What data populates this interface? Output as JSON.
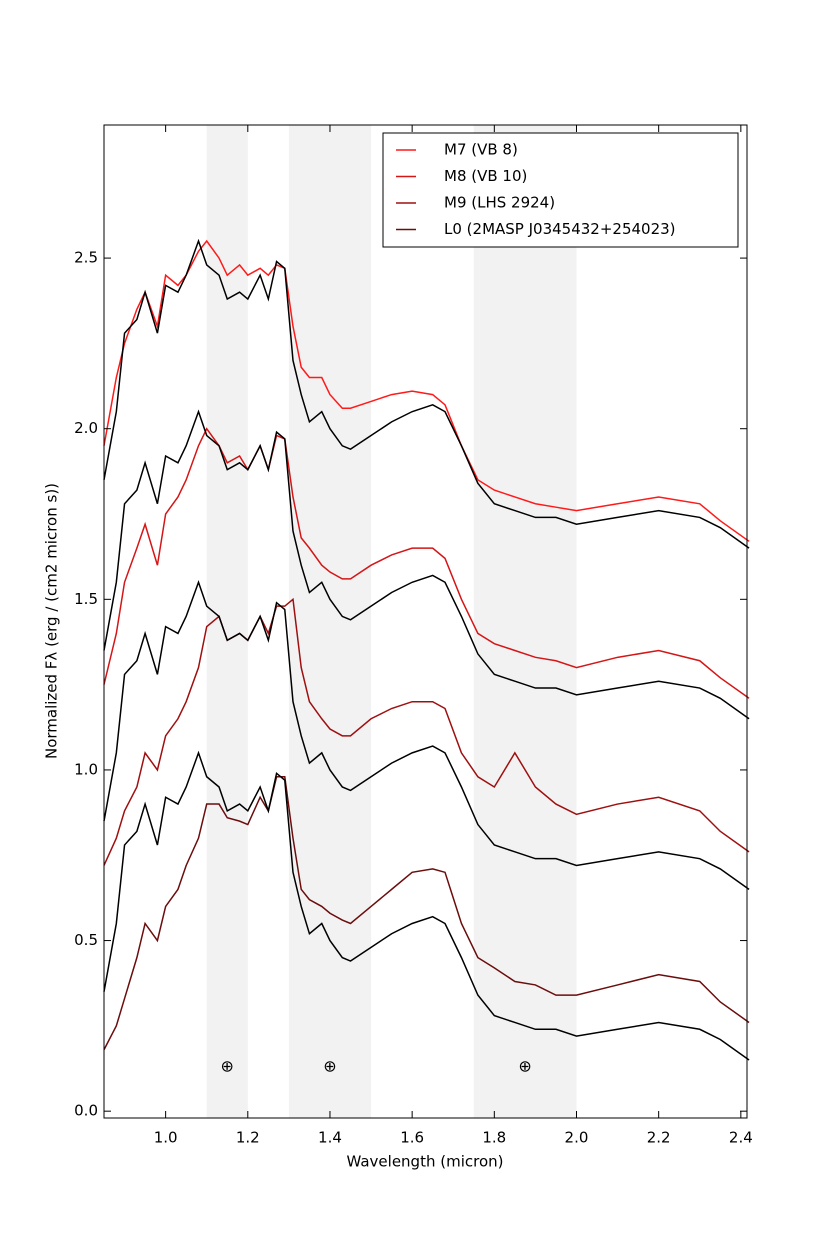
{
  "chart_data": {
    "type": "line",
    "xlabel": "Wavelength (micron)",
    "ylabel": "Normalized Fλ (erg / (cm2 micron s))",
    "xlim": [
      0.85,
      2.415
    ],
    "ylim": [
      -0.02,
      2.89
    ],
    "xticks": [
      {
        "value": 1,
        "label": "1.0"
      },
      1.2,
      1.4,
      1.6,
      1.8,
      {
        "value": 2,
        "label": "2.0"
      },
      2.2,
      2.4
    ],
    "yticks": [
      {
        "value": 0,
        "label": "0.0"
      },
      0.5,
      {
        "value": 1,
        "label": "1.0"
      },
      1.5,
      {
        "value": 2,
        "label": "2.0"
      },
      2.5
    ],
    "legend": "upper right",
    "shaded_regions": [
      [
        1.1,
        1.2
      ],
      [
        1.3,
        1.5
      ],
      [
        1.75,
        2.0
      ]
    ],
    "shade_color": "#f2f2f2",
    "annotations": [
      {
        "text": "⊕",
        "x": 1.15,
        "y": 0.13
      },
      {
        "text": "⊕",
        "x": 1.4,
        "y": 0.13
      },
      {
        "text": "⊕",
        "x": 1.875,
        "y": 0.13
      }
    ],
    "x": [
      0.85,
      0.88,
      0.9,
      0.93,
      0.95,
      0.98,
      1.0,
      1.03,
      1.05,
      1.08,
      1.1,
      1.13,
      1.15,
      1.18,
      1.2,
      1.23,
      1.25,
      1.27,
      1.29,
      1.31,
      1.33,
      1.35,
      1.38,
      1.4,
      1.43,
      1.45,
      1.5,
      1.55,
      1.6,
      1.65,
      1.68,
      1.72,
      1.76,
      1.8,
      1.85,
      1.9,
      1.95,
      2.0,
      2.1,
      2.2,
      2.3,
      2.35,
      2.42
    ],
    "series": [
      {
        "name": "M7 (VB 8)",
        "color": "#ff1a1a",
        "values": [
          1.95,
          2.15,
          2.25,
          2.35,
          2.4,
          2.3,
          2.45,
          2.42,
          2.45,
          2.52,
          2.55,
          2.5,
          2.45,
          2.48,
          2.45,
          2.47,
          2.45,
          2.48,
          2.47,
          2.3,
          2.18,
          2.15,
          2.15,
          2.1,
          2.06,
          2.06,
          2.08,
          2.1,
          2.11,
          2.1,
          2.07,
          1.95,
          1.85,
          1.82,
          1.8,
          1.78,
          1.77,
          1.76,
          1.78,
          1.8,
          1.78,
          1.73,
          1.67
        ]
      },
      {
        "name": "M8 (VB 10)",
        "color": "#d41616",
        "values": [
          1.25,
          1.4,
          1.55,
          1.65,
          1.72,
          1.6,
          1.75,
          1.8,
          1.85,
          1.95,
          2.0,
          1.95,
          1.9,
          1.92,
          1.88,
          1.95,
          1.88,
          1.98,
          1.97,
          1.8,
          1.68,
          1.65,
          1.6,
          1.58,
          1.56,
          1.56,
          1.6,
          1.63,
          1.65,
          1.65,
          1.62,
          1.5,
          1.4,
          1.37,
          1.35,
          1.33,
          1.32,
          1.3,
          1.33,
          1.35,
          1.32,
          1.27,
          1.21
        ]
      },
      {
        "name": "M9 (LHS 2924)",
        "color": "#9e1010",
        "values": [
          0.72,
          0.8,
          0.88,
          0.95,
          1.05,
          1.0,
          1.1,
          1.15,
          1.2,
          1.3,
          1.42,
          1.45,
          1.38,
          1.4,
          1.38,
          1.45,
          1.4,
          1.48,
          1.48,
          1.5,
          1.3,
          1.2,
          1.15,
          1.12,
          1.1,
          1.1,
          1.15,
          1.18,
          1.2,
          1.2,
          1.18,
          1.05,
          0.98,
          0.95,
          1.05,
          0.95,
          0.9,
          0.87,
          0.9,
          0.92,
          0.88,
          0.82,
          0.76
        ]
      },
      {
        "name": "L0 (2MASP J0345432+254023)",
        "color": "#6b0d0d",
        "values": [
          0.18,
          0.25,
          0.33,
          0.45,
          0.55,
          0.5,
          0.6,
          0.65,
          0.72,
          0.8,
          0.9,
          0.9,
          0.86,
          0.85,
          0.84,
          0.92,
          0.88,
          0.98,
          0.98,
          0.8,
          0.65,
          0.62,
          0.6,
          0.58,
          0.56,
          0.55,
          0.6,
          0.65,
          0.7,
          0.71,
          0.7,
          0.55,
          0.45,
          0.42,
          0.38,
          0.37,
          0.34,
          0.34,
          0.37,
          0.4,
          0.38,
          0.32,
          0.26
        ]
      },
      {
        "color": "#000000",
        "values": [
          1.85,
          2.05,
          2.28,
          2.32,
          2.4,
          2.28,
          2.42,
          2.4,
          2.45,
          2.55,
          2.48,
          2.45,
          2.38,
          2.4,
          2.38,
          2.45,
          2.38,
          2.49,
          2.47,
          2.2,
          2.1,
          2.02,
          2.05,
          2.0,
          1.95,
          1.94,
          1.98,
          2.02,
          2.05,
          2.07,
          2.05,
          1.95,
          1.84,
          1.78,
          1.76,
          1.74,
          1.74,
          1.72,
          1.74,
          1.76,
          1.74,
          1.71,
          1.65
        ]
      },
      {
        "color": "#000000",
        "values": [
          1.35,
          1.55,
          1.78,
          1.82,
          1.9,
          1.78,
          1.92,
          1.9,
          1.95,
          2.05,
          1.98,
          1.95,
          1.88,
          1.9,
          1.88,
          1.95,
          1.88,
          1.99,
          1.97,
          1.7,
          1.6,
          1.52,
          1.55,
          1.5,
          1.45,
          1.44,
          1.48,
          1.52,
          1.55,
          1.57,
          1.55,
          1.45,
          1.34,
          1.28,
          1.26,
          1.24,
          1.24,
          1.22,
          1.24,
          1.26,
          1.24,
          1.21,
          1.15
        ]
      },
      {
        "color": "#000000",
        "values": [
          0.85,
          1.05,
          1.28,
          1.32,
          1.4,
          1.28,
          1.42,
          1.4,
          1.45,
          1.55,
          1.48,
          1.45,
          1.38,
          1.4,
          1.38,
          1.45,
          1.38,
          1.49,
          1.47,
          1.2,
          1.1,
          1.02,
          1.05,
          1.0,
          0.95,
          0.94,
          0.98,
          1.02,
          1.05,
          1.07,
          1.05,
          0.95,
          0.84,
          0.78,
          0.76,
          0.74,
          0.74,
          0.72,
          0.74,
          0.76,
          0.74,
          0.71,
          0.65
        ]
      },
      {
        "color": "#000000",
        "values": [
          0.35,
          0.55,
          0.78,
          0.82,
          0.9,
          0.78,
          0.92,
          0.9,
          0.95,
          1.05,
          0.98,
          0.95,
          0.88,
          0.9,
          0.88,
          0.95,
          0.88,
          0.99,
          0.97,
          0.7,
          0.6,
          0.52,
          0.55,
          0.5,
          0.45,
          0.44,
          0.48,
          0.52,
          0.55,
          0.57,
          0.55,
          0.45,
          0.34,
          0.28,
          0.26,
          0.24,
          0.24,
          0.22,
          0.24,
          0.26,
          0.24,
          0.21,
          0.15
        ]
      }
    ]
  }
}
